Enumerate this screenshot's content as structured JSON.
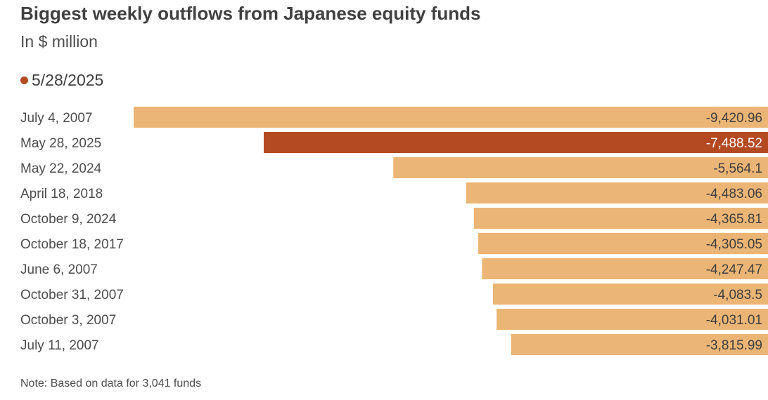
{
  "header": {
    "title": "Biggest weekly outflows from Japanese equity funds",
    "subtitle": "In $ million"
  },
  "legend": {
    "label": "5/28/2025",
    "color": "#b44a22"
  },
  "note": "Note: Based on data for 3,041 funds",
  "colors": {
    "default_bar": "#ebb575",
    "highlight_bar": "#b44a22",
    "default_text": "#404040",
    "highlight_text": "#ffffff"
  },
  "chart_data": {
    "type": "bar",
    "orientation": "horizontal",
    "categories": [
      "July 4, 2007",
      "May 28, 2025",
      "May 22, 2024",
      "April 18, 2018",
      "October 9, 2024",
      "October 18, 2017",
      "June 6, 2007",
      "October 31, 2007",
      "October 3, 2007",
      "July 11, 2007"
    ],
    "values": [
      -9420.96,
      -7488.52,
      -5564.1,
      -4483.06,
      -4365.81,
      -4305.05,
      -4247.47,
      -4083.5,
      -4031.01,
      -3815.99
    ],
    "value_labels": [
      "-9,420.96",
      "-7,488.52",
      "-5,564.1",
      "-4,483.06",
      "-4,365.81",
      "-4,305.05",
      "-4,247.47",
      "-4,083.5",
      "-4,031.01",
      "-3,815.99"
    ],
    "highlight_index": 1,
    "xlim": [
      -9420.96,
      0
    ],
    "grid": false,
    "legend_position": "top-left"
  }
}
